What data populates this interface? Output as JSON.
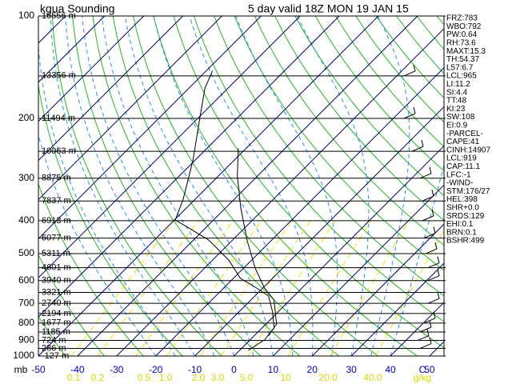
{
  "chart_data": {
    "type": "skew-t",
    "title": "kgua Sounding",
    "subtitle": "5 day  valid 18Z MON 19 JAN 15",
    "y_label": "mb",
    "x_unit": "C",
    "mixing_unit": "g/kg",
    "ylim": [
      1000,
      100
    ],
    "log_y": true,
    "yticks": [
      100,
      200,
      300,
      400,
      500,
      600,
      700,
      800,
      900,
      1000
    ],
    "xlim": [
      -50,
      53.7
    ],
    "xticks": [
      -50,
      -40,
      -30,
      -20,
      -10,
      0,
      10,
      20,
      30,
      40,
      50
    ],
    "levels": [
      100,
      150,
      200,
      250,
      300,
      350,
      400,
      450,
      500,
      550,
      600,
      650,
      700,
      750,
      800,
      850,
      900,
      950,
      1000
    ],
    "height_labels": [
      "16556 m",
      "13356 m",
      "11494 m",
      "10063 m",
      "8875 m",
      "7837 m",
      "6913 m",
      "6077 m",
      "5311 m",
      "4601 m",
      "3940 m",
      "3321 m",
      "2740 m",
      "2194 m",
      "1677 m",
      "1185 m",
      "724 m",
      "286 m",
      "-127 m"
    ],
    "mixing_ratio_labels": [
      "0.1",
      "0.2",
      "0.5",
      "1.0",
      "2.0",
      "3.0",
      "5.0",
      "10",
      "20.0",
      "40.0"
    ],
    "series": [
      {
        "color": "#000000",
        "pressure": [
          962,
          897,
          827,
          742,
          666,
          631,
          591,
          522,
          456,
          420,
          398,
          348,
          265,
          202,
          163,
          145
        ],
        "temperature": [
          2.2,
          3.7,
          3.1,
          -1.4,
          -6.5,
          -11.6,
          -18.2,
          -25.9,
          -36.1,
          -44.3,
          -49.8,
          -52.9,
          -60.6,
          -69.2,
          -75.9,
          -78.4
        ]
      },
      {
        "color": "#000000",
        "pressure": [
          873,
          805,
          684,
          631,
          551,
          456,
          367,
          296,
          245
        ],
        "temperature": [
          3.7,
          2.7,
          -4.1,
          -9.6,
          -17.1,
          -26.3,
          -36.1,
          -45.1,
          -52.0
        ]
      }
    ],
    "stats": [
      "FRZ:783",
      "WBO:792",
      "PW:0.64",
      "RH:73.6",
      "MAXT:15.3",
      "TH:54.37",
      "L57:6.7",
      "LCL:965",
      "LI:11.2",
      "SI:4.4",
      "TT:48",
      "KI:23",
      "SW:108",
      "EI:0.9",
      "-PARCEL-",
      "CAPE:41",
      "CINH:14907",
      "LCL:919",
      "CAP:11.1",
      "LFC:-1",
      "-WIND-",
      "STM:176/27",
      "HEL:398",
      "SHR+0.0",
      "SRDS:129",
      "EHI:0.1",
      "BRN:0.1",
      "BSHR:499"
    ]
  }
}
